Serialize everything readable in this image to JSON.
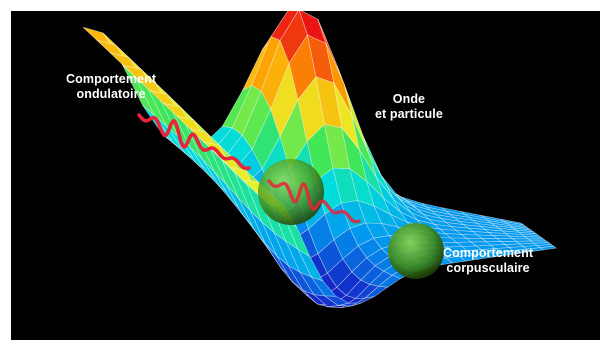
{
  "labels": {
    "wave_line1": "Comportement",
    "wave_line2": "ondulatoire",
    "duality_line1": "Onde",
    "duality_line2": "et particule",
    "particle_line1": "Comportement",
    "particle_line2": "corpusculaire"
  },
  "colors": {
    "background": "#000000",
    "wave_line": "#e8233a",
    "sphere": "#5fbf28"
  }
}
